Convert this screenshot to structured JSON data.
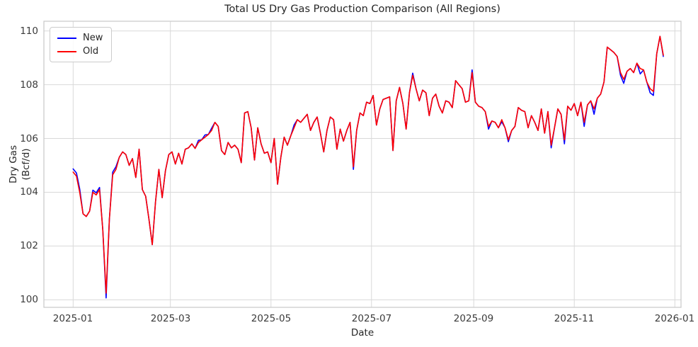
{
  "chart_data": {
    "type": "line",
    "title": "Total US Dry Gas Production Comparison (All Regions)",
    "xlabel": "Date",
    "ylabel": "Dry Gas (Bcf/d)",
    "x_start_date": "2025-01-01",
    "x_step_days": 2,
    "x_axis_span_days": 365,
    "ylim": [
      99.72,
      110.36
    ],
    "y_ticks": [
      100,
      102,
      104,
      106,
      108,
      110
    ],
    "x_ticks": [
      {
        "label": "2025-01",
        "day": 0
      },
      {
        "label": "2025-03",
        "day": 59
      },
      {
        "label": "2025-05",
        "day": 120
      },
      {
        "label": "2025-07",
        "day": 181
      },
      {
        "label": "2025-09",
        "day": 243
      },
      {
        "label": "2025-11",
        "day": 304
      },
      {
        "label": "2026-01",
        "day": 365
      }
    ],
    "grid": true,
    "legend": {
      "position": "upper-left",
      "entries": [
        {
          "label": "New",
          "color": "#0000ff"
        },
        {
          "label": "Old",
          "color": "#ff0000"
        }
      ]
    },
    "styles": {
      "grid_color": "#d9d9d9",
      "axes_edge_color": "#cccccc",
      "text_color": "#262626",
      "tick_color": "#3b3b3b",
      "background": "#ffffff"
    },
    "series": [
      {
        "name": "New",
        "color": "#0000ff",
        "values": [
          104.87,
          104.72,
          104.12,
          103.2,
          103.1,
          103.3,
          104.08,
          103.98,
          104.18,
          102.6,
          100.07,
          103.0,
          104.75,
          104.95,
          105.3,
          105.5,
          105.4,
          105.0,
          105.25,
          104.55,
          105.6,
          104.1,
          103.85,
          103.0,
          102.05,
          103.65,
          104.85,
          103.8,
          104.8,
          105.4,
          105.5,
          105.05,
          105.45,
          105.05,
          105.6,
          105.65,
          105.8,
          105.63,
          105.93,
          105.95,
          106.13,
          106.15,
          106.38,
          106.6,
          106.45,
          105.55,
          105.4,
          105.85,
          105.65,
          105.75,
          105.6,
          105.1,
          106.95,
          107.0,
          106.4,
          105.2,
          106.4,
          105.8,
          105.45,
          105.5,
          105.1,
          106.0,
          104.3,
          105.3,
          106.05,
          105.75,
          106.1,
          106.5,
          106.7,
          106.6,
          106.75,
          106.9,
          106.3,
          106.6,
          106.8,
          106.2,
          105.5,
          106.3,
          106.8,
          106.7,
          105.6,
          106.35,
          105.9,
          106.3,
          106.6,
          104.85,
          106.3,
          106.95,
          106.85,
          107.35,
          107.3,
          107.6,
          106.5,
          107.1,
          107.45,
          107.5,
          107.55,
          105.55,
          107.4,
          107.9,
          107.3,
          106.35,
          107.7,
          108.43,
          107.85,
          107.4,
          107.8,
          107.7,
          106.85,
          107.5,
          107.65,
          107.2,
          106.95,
          107.4,
          107.35,
          107.15,
          108.15,
          108.0,
          107.85,
          107.35,
          107.4,
          108.55,
          107.35,
          107.2,
          107.15,
          107.0,
          106.35,
          106.65,
          106.6,
          106.4,
          106.62,
          106.4,
          105.88,
          106.3,
          106.45,
          107.15,
          107.05,
          107.0,
          106.4,
          106.85,
          106.6,
          106.3,
          107.1,
          106.2,
          107.0,
          105.65,
          106.4,
          107.1,
          106.9,
          105.8,
          107.2,
          107.05,
          107.3,
          106.85,
          107.35,
          106.45,
          107.25,
          107.4,
          106.9,
          107.5,
          107.65,
          108.1,
          109.4,
          109.3,
          109.2,
          109.05,
          108.35,
          108.05,
          108.5,
          108.6,
          108.45,
          108.8,
          108.4,
          108.55,
          108.1,
          107.7,
          107.6,
          109.15,
          109.8,
          109.05
        ]
      },
      {
        "name": "Old",
        "color": "#ff0000",
        "values": [
          104.75,
          104.6,
          104.0,
          103.2,
          103.1,
          103.3,
          104.0,
          103.9,
          104.1,
          102.6,
          100.25,
          103.0,
          104.65,
          104.85,
          105.3,
          105.5,
          105.4,
          105.0,
          105.25,
          104.55,
          105.6,
          104.1,
          103.85,
          103.0,
          102.05,
          103.65,
          104.85,
          103.8,
          104.8,
          105.4,
          105.5,
          105.05,
          105.45,
          105.05,
          105.6,
          105.65,
          105.8,
          105.63,
          105.85,
          105.95,
          106.05,
          106.15,
          106.3,
          106.6,
          106.45,
          105.55,
          105.4,
          105.85,
          105.65,
          105.75,
          105.6,
          105.1,
          106.95,
          107.0,
          106.4,
          105.2,
          106.4,
          105.8,
          105.45,
          105.5,
          105.1,
          106.0,
          104.3,
          105.3,
          106.05,
          105.75,
          106.1,
          106.4,
          106.7,
          106.6,
          106.75,
          106.9,
          106.3,
          106.6,
          106.8,
          106.2,
          105.5,
          106.3,
          106.8,
          106.7,
          105.6,
          106.35,
          105.9,
          106.3,
          106.6,
          104.95,
          106.3,
          106.95,
          106.85,
          107.35,
          107.3,
          107.6,
          106.5,
          107.1,
          107.45,
          107.5,
          107.55,
          105.55,
          107.4,
          107.9,
          107.3,
          106.35,
          107.7,
          108.35,
          107.85,
          107.4,
          107.8,
          107.7,
          106.85,
          107.5,
          107.65,
          107.2,
          106.95,
          107.4,
          107.35,
          107.15,
          108.15,
          108.0,
          107.85,
          107.35,
          107.4,
          108.45,
          107.35,
          107.2,
          107.15,
          107.0,
          106.45,
          106.65,
          106.6,
          106.4,
          106.7,
          106.4,
          105.95,
          106.3,
          106.45,
          107.15,
          107.05,
          107.0,
          106.4,
          106.85,
          106.6,
          106.3,
          107.1,
          106.2,
          107.0,
          105.75,
          106.4,
          107.1,
          106.9,
          105.95,
          107.2,
          107.05,
          107.3,
          106.85,
          107.35,
          106.6,
          107.25,
          107.4,
          107.1,
          107.5,
          107.65,
          108.1,
          109.4,
          109.3,
          109.2,
          109.05,
          108.45,
          108.2,
          108.5,
          108.6,
          108.45,
          108.8,
          108.6,
          108.55,
          108.1,
          107.85,
          107.75,
          109.15,
          109.8,
          109.1
        ]
      }
    ]
  }
}
